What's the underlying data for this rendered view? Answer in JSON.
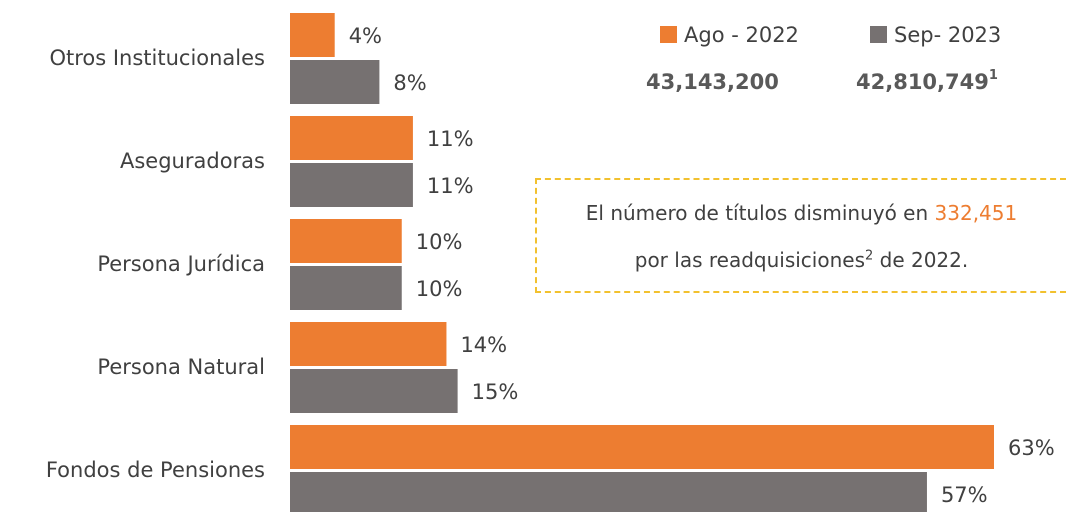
{
  "chart_data": {
    "type": "bar",
    "orientation": "horizontal",
    "categories": [
      "Otros Institucionales",
      "Aseguradoras",
      "Persona Jurídica",
      "Persona Natural",
      "Fondos de Pensiones"
    ],
    "series": [
      {
        "name": "Ago - 2022",
        "color": "#ed7d31",
        "values": [
          4,
          11,
          10,
          14,
          63
        ],
        "value_labels": [
          "4%",
          "11%",
          "10%",
          "14%",
          "63%"
        ],
        "total": "43,143,200"
      },
      {
        "name": "Sep- 2023",
        "color": "#767171",
        "values": [
          8,
          11,
          10,
          15,
          57
        ],
        "value_labels": [
          "8%",
          "11%",
          "10%",
          "15%",
          "57%"
        ],
        "total": "42,810,749",
        "total_footnote": "1"
      }
    ],
    "annotation": {
      "line1": "El número de títulos disminuyó en",
      "highlight": "332,451",
      "line2": "por las readquisiciones",
      "footnote": "2",
      "line2_end": "de 2022.",
      "highlight_color": "#ed7d31",
      "border_color": "#f2c12e"
    }
  }
}
